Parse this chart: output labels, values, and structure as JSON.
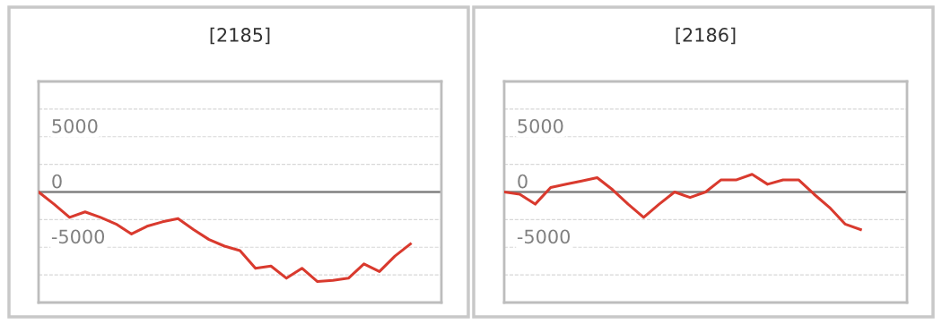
{
  "chart_data": [
    {
      "type": "line",
      "title": "[2185]",
      "categories": [
        null,
        null,
        null,
        null,
        null,
        null,
        null,
        null,
        null,
        null,
        null,
        null,
        null,
        null,
        null,
        null,
        null,
        null,
        null,
        null,
        null,
        null,
        null,
        null,
        null,
        null,
        null
      ],
      "series": [
        {
          "color": "#d93a2e",
          "values": [
            0,
            -1100,
            -2300,
            -1800,
            -2300,
            -2900,
            -3800,
            -3100,
            -2700,
            -2400,
            -3400,
            -4300,
            -4900,
            -5300,
            -6900,
            -6700,
            -7800,
            -6900,
            -8100,
            -8000,
            -7800,
            -6500,
            -7200,
            -5800,
            -4700,
            null,
            null
          ]
        }
      ],
      "ylim": [
        -10000,
        10000
      ],
      "yticks": [
        {
          "value": -10000,
          "label": null
        },
        {
          "value": -7500,
          "label": null
        },
        -5000,
        {
          "value": -2500,
          "label": null
        },
        0,
        {
          "value": 2500,
          "label": null
        },
        5000,
        {
          "value": 7500,
          "label": null
        },
        {
          "value": 10000,
          "label": null
        }
      ],
      "ref_lines": [
        {
          "axis": "y",
          "value": 0,
          "color": "#808080"
        }
      ],
      "grid": "y",
      "marker": "none",
      "line_style": "solid",
      "legend": false,
      "tick_labels": "y"
    },
    {
      "type": "line",
      "title": "[2186]",
      "categories": [
        null,
        null,
        null,
        null,
        null,
        null,
        null,
        null,
        null,
        null,
        null,
        null,
        null,
        null,
        null,
        null,
        null,
        null,
        null,
        null,
        null,
        null,
        null,
        null,
        null,
        null,
        null
      ],
      "series": [
        {
          "color": "#d93a2e",
          "values": [
            0,
            -200,
            -1100,
            400,
            700,
            1000,
            1300,
            200,
            -1100,
            -2300,
            -1100,
            0,
            -500,
            0,
            1100,
            1100,
            1600,
            700,
            1100,
            1100,
            -200,
            -1400,
            -2900,
            -3400,
            null,
            null,
            null
          ]
        }
      ],
      "ylim": [
        -10000,
        10000
      ],
      "yticks": [
        {
          "value": -10000,
          "label": null
        },
        {
          "value": -7500,
          "label": null
        },
        -5000,
        {
          "value": -2500,
          "label": null
        },
        0,
        {
          "value": 2500,
          "label": null
        },
        5000,
        {
          "value": 7500,
          "label": null
        },
        {
          "value": 10000,
          "label": null
        }
      ],
      "ref_lines": [
        {
          "axis": "y",
          "value": 0,
          "color": "#808080"
        }
      ],
      "grid": "y",
      "marker": "none",
      "line_style": "solid",
      "legend": false,
      "tick_labels": "y"
    }
  ]
}
